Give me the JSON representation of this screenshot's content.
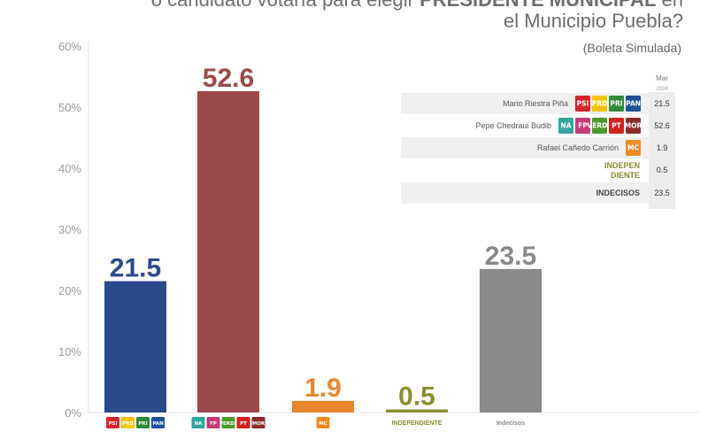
{
  "header": {
    "title_line1_prefix": "o candidato votaría para elegir",
    "title_line1_bold": "PRESIDENTE MUNICIPAL",
    "title_line1_suffix": "en",
    "title_line2": "el Municipio Puebla?",
    "subtitle": "(Boleta Simulada)"
  },
  "chart_data": {
    "type": "bar",
    "title": "",
    "xlabel": "",
    "ylabel": "",
    "ylim": [
      0,
      60
    ],
    "yticks": [
      "0%",
      "10%",
      "20%",
      "30%",
      "40%",
      "50%",
      "60%"
    ],
    "grid": false,
    "categories": [
      "Mario Riestra Piña",
      "Pepe Chedraui Budib",
      "Rafael Cañedo Carrión",
      "INDEPENDIENTE",
      "Indecisos"
    ],
    "values": [
      21.5,
      52.6,
      1.9,
      0.5,
      23.5
    ],
    "value_labels": [
      "21.5",
      "52.6",
      "1.9",
      "0.5",
      "23.5"
    ],
    "bar_colors": [
      "#2b4a8e",
      "#9a4a4a",
      "#e8862d",
      "#8a8f2e",
      "#8a8a8a"
    ],
    "x_labels_text": [
      "",
      "",
      "",
      "INDEPENDIENTE",
      "Indecisos"
    ],
    "x_label_logos": [
      [
        "PSI",
        "PRD",
        "PRI",
        "PAN"
      ],
      [
        "NA",
        "FP",
        "PVEM",
        "PT",
        "MOR"
      ],
      [
        "MC"
      ],
      [],
      []
    ]
  },
  "legend_table": {
    "column_header": "Mar",
    "column_subheader": "2024",
    "rows": [
      {
        "name": "Mario Riestra Piña",
        "value": "21.5",
        "logos": [
          "PSI",
          "PRD",
          "PRI",
          "PAN"
        ]
      },
      {
        "name": "Pepe Chedraui Budib",
        "value": "52.6",
        "logos": [
          "NA",
          "FP",
          "PVEM",
          "PT",
          "MOR"
        ]
      },
      {
        "name": "Rafael Cañedo Carrión",
        "value": "1.9",
        "logos": [
          "MC"
        ]
      },
      {
        "name": "INDEPEN",
        "name2": "DIENTE",
        "value": "0.5",
        "logos": []
      },
      {
        "name": "INDECISOS",
        "value": "23.5",
        "logos": []
      }
    ]
  },
  "logo_text": {
    "PSI": "PSI",
    "PRD": "PRD",
    "PRI": "PRI",
    "PAN": "PAN",
    "NA": "NA",
    "FP": "FP",
    "PVEM": "VERDE",
    "PT": "PT",
    "MOR": "MOR",
    "MC": "MC"
  },
  "logo_colors": {
    "PSI": "#d6252a",
    "PRD": "#f4c300",
    "PRI": "#2e8b3e",
    "PAN": "#1d4f9c",
    "NA": "#2fa6a0",
    "FP": "#c9397a",
    "PVEM": "#4a9a2e",
    "PT": "#d3201f",
    "MOR": "#8b2a2a",
    "MC": "#f08a24"
  }
}
